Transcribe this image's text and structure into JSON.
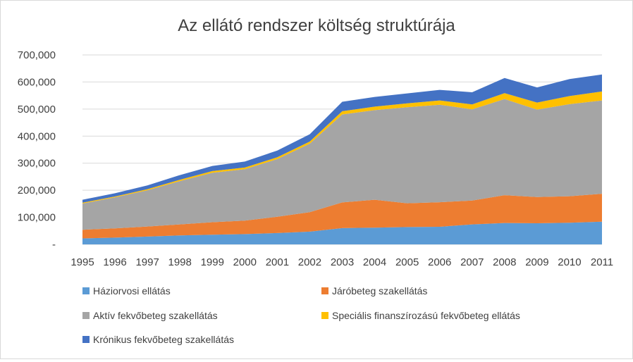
{
  "chart_data": {
    "type": "area",
    "stacked": true,
    "title": "Az ellátó rendszer költség struktúrája",
    "xlabel": "",
    "ylabel": "",
    "x": [
      "1995",
      "1996",
      "1997",
      "1998",
      "1999",
      "2000",
      "2001",
      "2002",
      "2003",
      "2004",
      "2005",
      "2006",
      "2007",
      "2008",
      "2009",
      "2010",
      "2011"
    ],
    "ylim": [
      0,
      700000
    ],
    "yticks": [
      0,
      100000,
      200000,
      300000,
      400000,
      500000,
      600000,
      700000
    ],
    "ytick_labels": [
      "-",
      "100,000",
      "200,000",
      "300,000",
      "400,000",
      "500,000",
      "600,000",
      "700,000"
    ],
    "grid": true,
    "legend_position": "bottom",
    "series": [
      {
        "name": "Háziorvosi ellátás",
        "color": "#5b9bd5",
        "values": [
          22000,
          25000,
          29000,
          33000,
          36000,
          38000,
          42000,
          47000,
          60000,
          62000,
          64000,
          65000,
          74000,
          79000,
          78000,
          80000,
          84000
        ]
      },
      {
        "name": "Járóbeteg szakellátás",
        "color": "#ed7d31",
        "values": [
          32000,
          34000,
          37000,
          41000,
          46000,
          50000,
          60000,
          72000,
          95000,
          103000,
          88000,
          91000,
          88000,
          103000,
          97000,
          98000,
          103000
        ]
      },
      {
        "name": "Aktív fekvőbeteg szakellátás",
        "color": "#a5a5a5",
        "values": [
          97000,
          115000,
          134000,
          160000,
          183000,
          190000,
          213000,
          253000,
          325000,
          331000,
          355000,
          360000,
          337000,
          355000,
          323000,
          340000,
          345000
        ]
      },
      {
        "name": "Speciális finanszírozású fekvőbeteg ellátás",
        "color": "#ffc000",
        "values": [
          3000,
          3000,
          4000,
          5000,
          6000,
          6000,
          7000,
          8000,
          12000,
          13000,
          14000,
          16000,
          18000,
          22000,
          26000,
          30000,
          33000
        ]
      },
      {
        "name": "Krónikus fekvőbeteg szakellátás",
        "color": "#4472c4",
        "values": [
          11000,
          12000,
          14000,
          17000,
          19000,
          22000,
          25000,
          27000,
          35000,
          36000,
          37000,
          39000,
          45000,
          56000,
          56000,
          63000,
          63000
        ]
      }
    ]
  }
}
